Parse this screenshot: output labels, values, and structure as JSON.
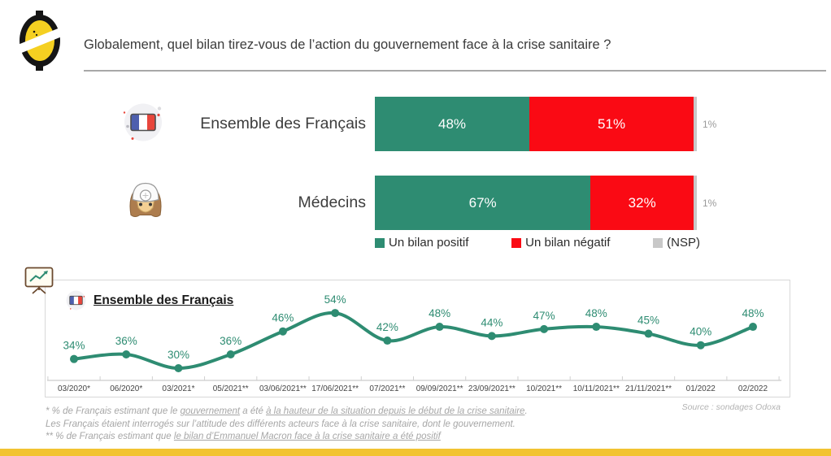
{
  "header": {
    "title": "Globalement, quel bilan tirez-vous de l’action du gouvernement face à la crise sanitaire ?"
  },
  "colors": {
    "positive": "#2E8C72",
    "negative": "#FA0A14",
    "nsp": "#C8C8C8",
    "accent_yellow": "#F2C331",
    "line": "#2E8C72"
  },
  "bars": {
    "rows": [
      {
        "label": "Ensemble des Français",
        "icon": "france-flag-icon",
        "positive": 48,
        "negative": 51,
        "nsp": 1,
        "positive_label": "48%",
        "negative_label": "51%",
        "nsp_label": "1%"
      },
      {
        "label": "Médecins",
        "icon": "doctor-icon",
        "positive": 67,
        "negative": 32,
        "nsp": 1,
        "positive_label": "67%",
        "negative_label": "32%",
        "nsp_label": "1%"
      }
    ],
    "legend": [
      {
        "label": "Un bilan positif",
        "color": "#2E8C72"
      },
      {
        "label": "Un bilan négatif",
        "color": "#FA0A14"
      },
      {
        "label": "(NSP)",
        "color": "#C8C8C8"
      }
    ]
  },
  "chart_data": {
    "type": "line",
    "title": "Ensemble des Français",
    "series_name": "Ensemble des Français",
    "categories": [
      "03/2020*",
      "06/2020*",
      "03/2021*",
      "05/2021**",
      "03/06/2021**",
      "17/06/2021**",
      "07/2021**",
      "09/09/2021**",
      "23/09/2021**",
      "10/2021**",
      "10/11/2021**",
      "21/11/2021**",
      "01/2022",
      "02/2022"
    ],
    "values": [
      34,
      36,
      30,
      36,
      46,
      54,
      42,
      48,
      44,
      47,
      48,
      45,
      40,
      48
    ],
    "unit": "%",
    "line_color": "#2E8C72",
    "ylim": [
      25,
      60
    ],
    "grid": false,
    "legend_position": "none",
    "xlabel": "",
    "ylabel": ""
  },
  "source": "Source : sondages Odoxa",
  "footnotes": [
    {
      "segments": [
        {
          "text": "* % de Français estimant que le ",
          "u": false
        },
        {
          "text": "gouvernement",
          "u": true
        },
        {
          "text": " a été ",
          "u": false
        },
        {
          "text": "à la hauteur de la situation depuis le début de la crise sanitaire",
          "u": true
        },
        {
          "text": ".",
          "u": false
        }
      ]
    },
    {
      "segments": [
        {
          "text": "Les Français étaient interrogés sur l’attitude des différents acteurs face à la crise sanitaire, dont le gouvernement.",
          "u": false
        }
      ]
    },
    {
      "segments": [
        {
          "text": "** % de Français estimant que ",
          "u": false
        },
        {
          "text": "le bilan d’Emmanuel Macron face à la crise sanitaire a été positif",
          "u": true
        }
      ]
    }
  ]
}
